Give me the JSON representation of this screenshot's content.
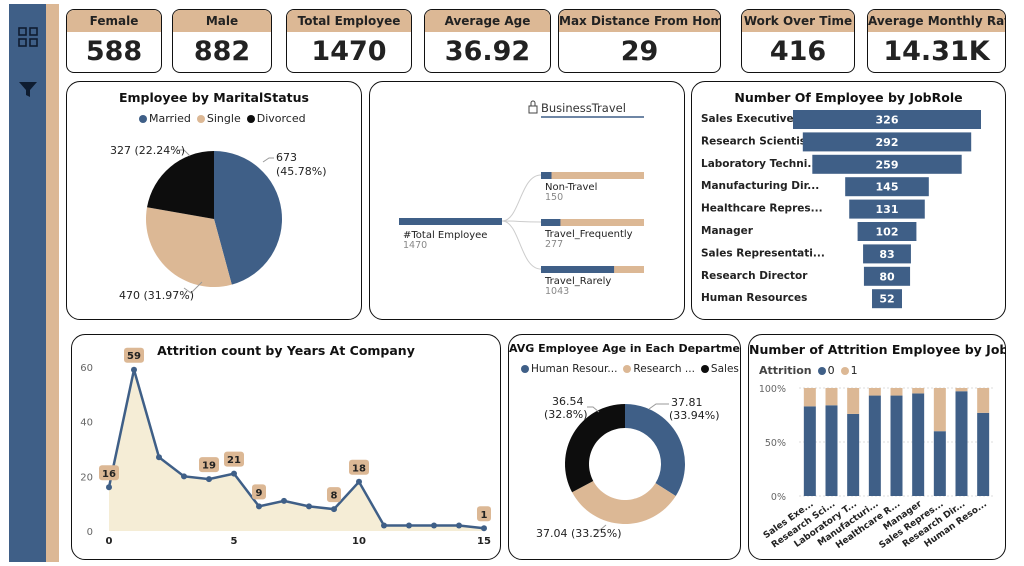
{
  "colors": {
    "navy": "#3f5f87",
    "tan": "#dcb895",
    "black": "#0d0d0d",
    "cream": "#f5edd6"
  },
  "sidebar": {
    "icons": [
      "grid-icon",
      "filter-icon"
    ]
  },
  "kpis": [
    {
      "label": "Female",
      "value": "588"
    },
    {
      "label": "Male",
      "value": "882"
    },
    {
      "label": "Total Employee",
      "value": "1470"
    },
    {
      "label": "Average Age",
      "value": "36.92"
    },
    {
      "label": "Max Distance From Home",
      "value": "29"
    },
    {
      "label": "Work Over Time",
      "value": "416"
    },
    {
      "label": "Average Monthly Rate",
      "value": "14.31K"
    }
  ],
  "chart_data": [
    {
      "type": "pie",
      "title": "Employee by MaritalStatus",
      "legend": [
        "Married",
        "Single",
        "Divorced"
      ],
      "slices": [
        {
          "name": "Married",
          "value": 673,
          "label": "673",
          "pct_label": "(45.78%)",
          "color": "#3f5f87"
        },
        {
          "name": "Single",
          "value": 470,
          "label": "470 (31.97%)",
          "color": "#dcb895"
        },
        {
          "name": "Divorced",
          "value": 327,
          "label": "327 (22.24%)",
          "color": "#0d0d0d"
        }
      ]
    },
    {
      "type": "decomposition-tree",
      "title_field": "BusinessTravel",
      "root": {
        "label": "#Total Employee",
        "value": 1470
      },
      "nodes": [
        {
          "label": "Non-Travel",
          "value": 150
        },
        {
          "label": "Travel_Frequently",
          "value": 277
        },
        {
          "label": "Travel_Rarely",
          "value": 1043
        }
      ]
    },
    {
      "type": "bar",
      "orientation": "horizontal-funnel",
      "title": "Number Of Employee by JobRole",
      "categories": [
        "Sales Executive",
        "Research Scientist",
        "Laboratory Techni...",
        "Manufacturing Dir...",
        "Healthcare Repres...",
        "Manager",
        "Sales Representati...",
        "Research Director",
        "Human Resources"
      ],
      "values": [
        326,
        292,
        259,
        145,
        131,
        102,
        83,
        80,
        52
      ]
    },
    {
      "type": "area",
      "title": "Attrition count by Years At Company",
      "x": [
        0,
        1,
        2,
        3,
        4,
        5,
        6,
        7,
        8,
        9,
        10,
        11,
        12,
        13,
        14,
        15
      ],
      "values": [
        16,
        59,
        27,
        20,
        19,
        21,
        9,
        11,
        9,
        8,
        18,
        2,
        2,
        2,
        2,
        1
      ],
      "labeled_points": [
        {
          "x": 0,
          "y": 16,
          "label": "16"
        },
        {
          "x": 1,
          "y": 59,
          "label": "59"
        },
        {
          "x": 4,
          "y": 19,
          "label": "19"
        },
        {
          "x": 5,
          "y": 21,
          "label": "21"
        },
        {
          "x": 6,
          "y": 9,
          "label": "9"
        },
        {
          "x": 9,
          "y": 8,
          "label": "8"
        },
        {
          "x": 10,
          "y": 18,
          "label": "18"
        },
        {
          "x": 15,
          "y": 1,
          "label": "1"
        }
      ],
      "x_ticks": [
        "0",
        "5",
        "10",
        "15"
      ],
      "y_ticks": [
        "0",
        "20",
        "40",
        "60"
      ],
      "ylim": [
        0,
        60
      ],
      "xlim": [
        0,
        15
      ]
    },
    {
      "type": "pie",
      "variant": "donut",
      "title": "AVG Employee Age in Each Department",
      "legend": [
        "Human Resour...",
        "Research ...",
        "Sales"
      ],
      "slices": [
        {
          "name": "Sales",
          "value": 37.81,
          "label": "37.81",
          "pct_label": "(33.94%)",
          "color": "#3f5f87"
        },
        {
          "name": "Research & Development",
          "value": 37.04,
          "label": "37.04 (33.25%)",
          "color": "#dcb895"
        },
        {
          "name": "Human Resources",
          "value": 36.54,
          "label": "36.54",
          "pct_label": "(32.8%)",
          "color": "#0d0d0d"
        }
      ]
    },
    {
      "type": "bar",
      "variant": "100%-stacked",
      "title": "Number of Attrition Employee by JobRole",
      "legend_title": "Attrition",
      "legend": [
        "0",
        "1"
      ],
      "categories": [
        "Sales Exe...",
        "Research Sci...",
        "Laboratory T...",
        "Manufacturi...",
        "Healthcare R...",
        "Manager",
        "Sales Repres...",
        "Research Dir...",
        "Human Reso..."
      ],
      "series": [
        {
          "name": "0",
          "values": [
            83,
            84,
            76,
            93,
            93,
            95,
            60,
            97,
            77
          ]
        },
        {
          "name": "1",
          "values": [
            17,
            16,
            24,
            7,
            7,
            5,
            40,
            3,
            23
          ]
        }
      ],
      "y_ticks": [
        "0%",
        "50%",
        "100%"
      ],
      "ylim": [
        0,
        100
      ]
    }
  ]
}
